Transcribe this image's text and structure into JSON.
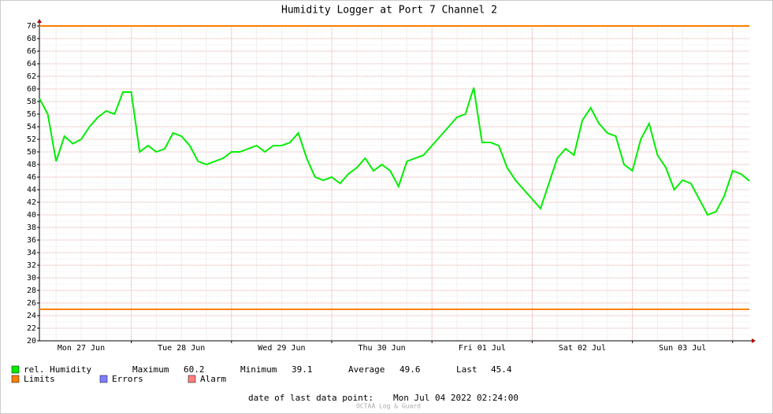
{
  "chart_data": {
    "type": "line",
    "title": "Humidity Logger at Port 7 Channel 2",
    "categories": [
      null,
      null,
      null,
      null,
      null,
      "Mon 27 Jun",
      null,
      null,
      null,
      null,
      null,
      null,
      null,
      null,
      null,
      null,
      null,
      "Tue 28 Jun",
      null,
      null,
      null,
      null,
      null,
      null,
      null,
      null,
      null,
      null,
      null,
      "Wed 29 Jun",
      null,
      null,
      null,
      null,
      null,
      null,
      null,
      null,
      null,
      null,
      null,
      "Thu 30 Jun",
      null,
      null,
      null,
      null,
      null,
      null,
      null,
      null,
      null,
      null,
      null,
      "Fri 01 Jul",
      null,
      null,
      null,
      null,
      null,
      null,
      null,
      null,
      null,
      null,
      null,
      "Sat 02 Jul",
      null,
      null,
      null,
      null,
      null,
      null,
      null,
      null,
      null,
      null,
      null,
      "Sun 03 Jul",
      null,
      null,
      null,
      null,
      null,
      null,
      null,
      null
    ],
    "series": [
      {
        "name": "rel. Humidity",
        "color": "#00ee00",
        "values": [
          58.5,
          56,
          48.5,
          52.5,
          51.3,
          52,
          54,
          55.5,
          56.5,
          56,
          59.5,
          59.5,
          50,
          51,
          50,
          50.5,
          53,
          52.5,
          51,
          48.5,
          48,
          48.5,
          49,
          50,
          50,
          50.5,
          51,
          50,
          51,
          51,
          51.5,
          53,
          49,
          46,
          45.5,
          46,
          45,
          46.5,
          47.5,
          49,
          47,
          48,
          47,
          44.5,
          48.5,
          49,
          49.5,
          51,
          52.5,
          54,
          55.5,
          56,
          60.2,
          51.5,
          51.5,
          51,
          47.5,
          45.5,
          44,
          42.5,
          41,
          45,
          49,
          50.5,
          49.5,
          55,
          57,
          54.5,
          53,
          52.5,
          48,
          47,
          52,
          54.5,
          49.5,
          47.5,
          44,
          45.5,
          45,
          42.5,
          40,
          40.5,
          43,
          47,
          46.5,
          45.4
        ]
      }
    ],
    "limits": {
      "name": "Limits",
      "color": "#ff7f00",
      "values": [
        70,
        25
      ]
    },
    "other_legend": [
      {
        "name": "Errors",
        "color": "#7f7fff"
      },
      {
        "name": "Alarm",
        "color": "#ff7f7f"
      }
    ],
    "stats": [
      {
        "label": "Maximum",
        "value": 60.2
      },
      {
        "label": "Minimum",
        "value": 39.1
      },
      {
        "label": "Average",
        "value": 49.6
      },
      {
        "label": "Last",
        "value": 45.4
      }
    ],
    "footer": {
      "label": "date of last data point:",
      "value": "Mon Jul 04 2022 02:24:00"
    },
    "watermark": "OCTAA Log & Guard",
    "ylim": [
      20,
      70
    ],
    "yticks": [
      20,
      22,
      24,
      26,
      28,
      30,
      32,
      34,
      36,
      38,
      40,
      42,
      44,
      46,
      48,
      50,
      52,
      54,
      56,
      58,
      60,
      62,
      64,
      66,
      68,
      70
    ],
    "grid": true
  }
}
